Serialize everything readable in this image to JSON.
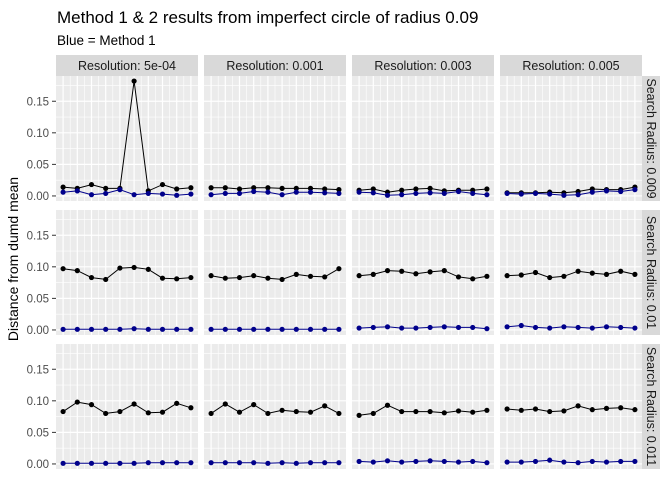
{
  "chart_data": {
    "type": "line",
    "title": "Method 1 & 2 results from imperfect circle of radius 0.09",
    "subtitle": "Blue = Method 1",
    "xlabel": "",
    "ylabel": "Distance from dumd mean",
    "ylim": [
      -0.008,
      0.19
    ],
    "yticks": [
      "0.00",
      "0.05",
      "0.10",
      "0.15"
    ],
    "grid": true,
    "legend": "none",
    "columns": [
      "Resolution: 5e-04",
      "Resolution: 0.001",
      "Resolution: 0.003",
      "Resolution: 0.005"
    ],
    "rows": [
      "Search Radius: 0.009",
      "Search Radius: 0.01",
      "Search Radius: 0.011"
    ],
    "x": [
      1,
      2,
      3,
      4,
      5,
      6,
      7,
      8,
      9,
      10
    ],
    "colors": {
      "method1": "#00008b",
      "method2": "#000000"
    },
    "panels": [
      [
        {
          "black": [
            0.014,
            0.012,
            0.018,
            0.012,
            0.012,
            0.182,
            0.008,
            0.018,
            0.011,
            0.013
          ],
          "blue": [
            0.006,
            0.008,
            0.002,
            0.004,
            0.01,
            0.002,
            0.004,
            0.003,
            0.001,
            0.003
          ]
        },
        {
          "black": [
            0.013,
            0.013,
            0.011,
            0.013,
            0.013,
            0.012,
            0.012,
            0.012,
            0.011,
            0.01
          ],
          "blue": [
            0.002,
            0.004,
            0.004,
            0.007,
            0.006,
            0.002,
            0.006,
            0.006,
            0.005,
            0.004
          ]
        },
        {
          "black": [
            0.009,
            0.011,
            0.006,
            0.009,
            0.011,
            0.012,
            0.008,
            0.009,
            0.009,
            0.011
          ],
          "blue": [
            0.006,
            0.005,
            0.001,
            0.002,
            0.004,
            0.005,
            0.004,
            0.007,
            0.004,
            0.002
          ]
        },
        {
          "black": [
            0.005,
            0.005,
            0.005,
            0.006,
            0.005,
            0.007,
            0.011,
            0.01,
            0.01,
            0.014
          ],
          "blue": [
            0.004,
            0.003,
            0.004,
            0.003,
            0.001,
            0.002,
            0.006,
            0.008,
            0.007,
            0.01
          ]
        }
      ],
      [
        {
          "black": [
            0.097,
            0.094,
            0.083,
            0.08,
            0.098,
            0.099,
            0.096,
            0.082,
            0.081,
            0.083
          ],
          "blue": [
            0.001,
            0.001,
            0.001,
            0.001,
            0.001,
            0.002,
            0.001,
            0.001,
            0.001,
            0.001
          ]
        },
        {
          "black": [
            0.086,
            0.082,
            0.083,
            0.086,
            0.082,
            0.08,
            0.088,
            0.085,
            0.084,
            0.097
          ],
          "blue": [
            0.001,
            0.001,
            0.001,
            0.001,
            0.001,
            0.001,
            0.001,
            0.001,
            0.001,
            0.001
          ]
        },
        {
          "black": [
            0.086,
            0.088,
            0.094,
            0.093,
            0.089,
            0.092,
            0.094,
            0.084,
            0.081,
            0.085
          ],
          "blue": [
            0.003,
            0.004,
            0.005,
            0.003,
            0.003,
            0.004,
            0.005,
            0.004,
            0.004,
            0.002
          ]
        },
        {
          "black": [
            0.086,
            0.087,
            0.091,
            0.083,
            0.085,
            0.093,
            0.09,
            0.088,
            0.093,
            0.088
          ],
          "blue": [
            0.005,
            0.007,
            0.004,
            0.003,
            0.005,
            0.004,
            0.003,
            0.005,
            0.004,
            0.003
          ]
        }
      ],
      [
        {
          "black": [
            0.083,
            0.098,
            0.094,
            0.08,
            0.083,
            0.095,
            0.081,
            0.082,
            0.096,
            0.089
          ],
          "blue": [
            0.001,
            0.001,
            0.001,
            0.001,
            0.001,
            0.001,
            0.002,
            0.002,
            0.002,
            0.002
          ]
        },
        {
          "black": [
            0.08,
            0.095,
            0.082,
            0.094,
            0.08,
            0.085,
            0.083,
            0.082,
            0.092,
            0.08
          ],
          "blue": [
            0.002,
            0.002,
            0.002,
            0.002,
            0.001,
            0.002,
            0.001,
            0.002,
            0.002,
            0.002
          ]
        },
        {
          "black": [
            0.077,
            0.08,
            0.093,
            0.083,
            0.083,
            0.083,
            0.081,
            0.084,
            0.082,
            0.085
          ],
          "blue": [
            0.004,
            0.003,
            0.005,
            0.003,
            0.004,
            0.005,
            0.004,
            0.003,
            0.004,
            0.002
          ]
        },
        {
          "black": [
            0.087,
            0.085,
            0.087,
            0.083,
            0.084,
            0.092,
            0.086,
            0.088,
            0.089,
            0.086
          ],
          "blue": [
            0.003,
            0.003,
            0.004,
            0.006,
            0.003,
            0.002,
            0.004,
            0.003,
            0.004,
            0.004
          ]
        }
      ]
    ]
  }
}
